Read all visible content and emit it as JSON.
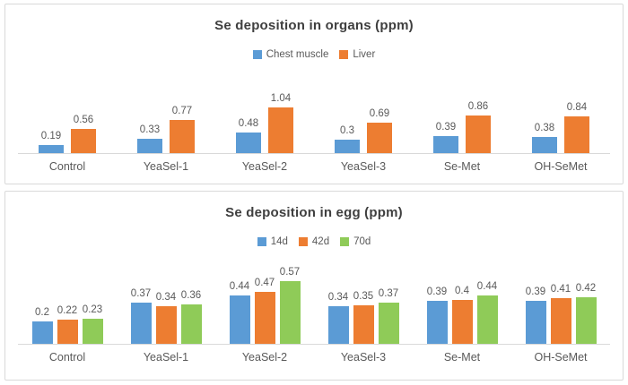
{
  "page": {
    "background_color": "#ffffff",
    "panel_border_color": "#d9d9d9",
    "title_color": "#3f3f3f",
    "label_color": "#595959",
    "axis_line_color": "#d9d9d9"
  },
  "chart_data": [
    {
      "type": "bar",
      "title": "Se deposition in organs (ppm)",
      "xlabel": "",
      "ylabel": "",
      "ylim": [
        0,
        1.5
      ],
      "grid": false,
      "legend_position": "top-center",
      "data_labels": true,
      "categories": [
        "Control",
        "YeaSel-1",
        "YeaSel-2",
        "YeaSel-3",
        "Se-Met",
        "OH-SeMet"
      ],
      "series": [
        {
          "name": "Chest muscle",
          "color": "#5B9BD5",
          "values": [
            0.19,
            0.33,
            0.48,
            0.3,
            0.39,
            0.38
          ]
        },
        {
          "name": "Liver",
          "color": "#ED7D31",
          "values": [
            0.56,
            0.77,
            1.04,
            0.69,
            0.86,
            0.84
          ]
        }
      ]
    },
    {
      "type": "bar",
      "title": "Se deposition in egg (ppm)",
      "xlabel": "",
      "ylabel": "",
      "ylim": [
        0,
        0.8
      ],
      "grid": false,
      "legend_position": "top-center",
      "data_labels": true,
      "categories": [
        "Control",
        "YeaSel-1",
        "YeaSel-2",
        "YeaSel-3",
        "Se-Met",
        "OH-SeMet"
      ],
      "series": [
        {
          "name": "14d",
          "color": "#5B9BD5",
          "values": [
            0.2,
            0.37,
            0.44,
            0.34,
            0.39,
            0.39
          ]
        },
        {
          "name": "42d",
          "color": "#ED7D31",
          "values": [
            0.22,
            0.34,
            0.47,
            0.35,
            0.4,
            0.41
          ]
        },
        {
          "name": "70d",
          "color": "#8FCB58",
          "values": [
            0.23,
            0.36,
            0.57,
            0.37,
            0.44,
            0.42
          ]
        }
      ]
    }
  ]
}
